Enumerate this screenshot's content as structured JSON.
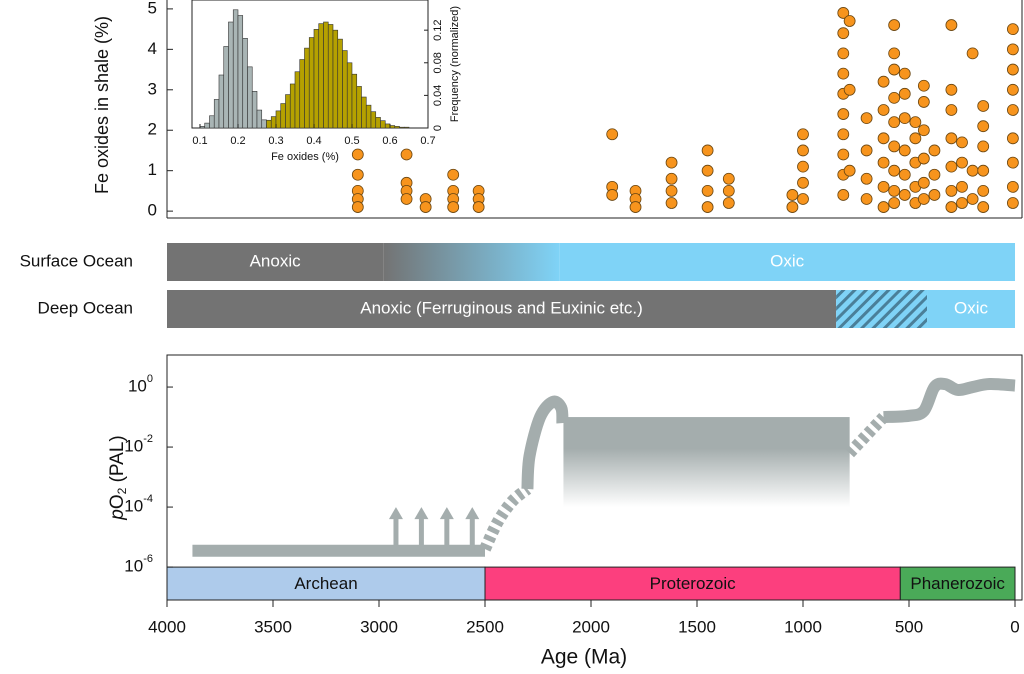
{
  "chart_data": [
    {
      "type": "scatter",
      "ylabel": "Fe oxides in shale (%)",
      "xlim": [
        4000,
        -33
      ],
      "ylim": [
        -0.17,
        5.22
      ],
      "yticks": [
        0,
        1,
        2,
        3,
        4,
        5
      ],
      "color": "#f7941d",
      "edge_color": "#6b4712",
      "x": [
        3100,
        3100,
        3100,
        3100,
        3100,
        2870,
        2870,
        2870,
        2870,
        2780,
        2780,
        2650,
        2650,
        2650,
        2650,
        2530,
        2530,
        2530,
        1900,
        1900,
        1900,
        1790,
        1790,
        1790,
        1620,
        1620,
        1620,
        1620,
        1450,
        1450,
        1450,
        1450,
        1350,
        1350,
        1350,
        1050,
        1050,
        1000,
        1000,
        1000,
        1000,
        1000,
        810,
        810,
        810,
        810,
        810,
        810,
        810,
        810,
        810,
        810,
        780,
        780,
        780,
        700,
        700,
        700,
        700,
        620,
        620,
        620,
        620,
        620,
        620,
        570,
        570,
        570,
        570,
        570,
        570,
        570,
        570,
        570,
        520,
        520,
        520,
        520,
        520,
        520,
        470,
        470,
        470,
        470,
        470,
        430,
        430,
        430,
        430,
        430,
        430,
        380,
        380,
        380,
        300,
        300,
        300,
        300,
        300,
        300,
        300,
        250,
        250,
        250,
        250,
        200,
        200,
        200,
        150,
        150,
        150,
        150,
        150,
        150,
        10,
        10,
        10,
        10,
        10,
        10,
        10,
        10,
        10
      ],
      "values": [
        1.4,
        0.9,
        0.5,
        0.3,
        0.1,
        1.4,
        0.7,
        0.5,
        0.3,
        0.3,
        0.1,
        0.9,
        0.5,
        0.3,
        0.1,
        0.5,
        0.3,
        0.1,
        1.9,
        0.6,
        0.4,
        0.5,
        0.3,
        0.1,
        1.2,
        0.8,
        0.5,
        0.2,
        1.5,
        1.0,
        0.5,
        0.1,
        0.8,
        0.5,
        0.2,
        0.4,
        0.1,
        1.9,
        1.5,
        1.1,
        0.7,
        0.3,
        4.9,
        4.4,
        3.9,
        3.4,
        2.9,
        2.4,
        1.9,
        1.4,
        0.9,
        0.4,
        4.7,
        3.0,
        1.0,
        2.3,
        1.5,
        0.8,
        0.3,
        3.2,
        2.5,
        1.8,
        1.2,
        0.6,
        0.1,
        4.6,
        3.9,
        3.5,
        2.8,
        2.2,
        1.6,
        1.0,
        0.5,
        0.2,
        3.4,
        2.9,
        2.3,
        1.5,
        0.9,
        0.4,
        2.2,
        1.8,
        1.2,
        0.6,
        0.2,
        3.1,
        2.7,
        2.0,
        1.3,
        0.7,
        0.3,
        1.5,
        0.9,
        0.4,
        4.6,
        3.0,
        2.5,
        1.8,
        1.1,
        0.5,
        0.1,
        1.7,
        1.2,
        0.6,
        0.2,
        3.9,
        1.0,
        0.3,
        2.6,
        2.1,
        1.6,
        1.0,
        0.5,
        0.1,
        4.5,
        4.0,
        3.5,
        3.0,
        2.5,
        1.8,
        1.2,
        0.6,
        0.2
      ]
    },
    {
      "type": "histogram",
      "xlabel": "Fe oxides (%)",
      "ylabel": "Frequency (normalized)",
      "xlim": [
        0.079,
        0.7
      ],
      "ylim": [
        0,
        0.157
      ],
      "xticks": [
        0.1,
        0.2,
        0.3,
        0.4,
        0.5,
        0.6,
        0.7
      ],
      "yticks": [
        0,
        0.04,
        0.08,
        0.12
      ],
      "edge_color": "#333333",
      "series": [
        {
          "color": "#a9b5b5",
          "bins": [
            0.1,
            0.1125,
            0.125,
            0.1375,
            0.15,
            0.1625,
            0.175,
            0.1875,
            0.2,
            0.2125,
            0.225,
            0.2375,
            0.25,
            0.2625,
            0.275,
            0.2875,
            0.3
          ],
          "values": [
            0.002,
            0.006,
            0.015,
            0.035,
            0.065,
            0.1,
            0.13,
            0.145,
            0.138,
            0.11,
            0.075,
            0.045,
            0.022,
            0.01,
            0.004,
            0.001
          ]
        },
        {
          "color": "#b5a100",
          "bins": [
            0.275,
            0.2875,
            0.3,
            0.3125,
            0.325,
            0.3375,
            0.35,
            0.3625,
            0.375,
            0.3875,
            0.4,
            0.4125,
            0.425,
            0.4375,
            0.45,
            0.4625,
            0.475,
            0.4875,
            0.5,
            0.5125,
            0.525,
            0.5375,
            0.55,
            0.5625,
            0.575,
            0.5875,
            0.6,
            0.6125,
            0.625,
            0.6375,
            0.65
          ],
          "values": [
            0.0095,
            0.014,
            0.021,
            0.03,
            0.041,
            0.054,
            0.069,
            0.084,
            0.098,
            0.111,
            0.121,
            0.128,
            0.13,
            0.127,
            0.12,
            0.109,
            0.095,
            0.08,
            0.066,
            0.051,
            0.038,
            0.028,
            0.02,
            0.013,
            0.009,
            0.005,
            0.003,
            0.002,
            0.001,
            0.001
          ]
        }
      ]
    },
    {
      "type": "bands",
      "xlim": [
        4000,
        -33
      ],
      "rows": [
        {
          "name": "Surface Ocean",
          "segments": [
            {
              "label": "Anoxic",
              "start": 4000,
              "end": 2980,
              "color": "#737373"
            },
            {
              "start": 2980,
              "end": 2150,
              "style": "gradient"
            },
            {
              "label": "Oxic",
              "start": 2150,
              "end": 0,
              "color": "#7fd3f7"
            }
          ]
        },
        {
          "name": "Deep Ocean",
          "segments": [
            {
              "label": "Anoxic (Ferruginous and Euxinic etc.)",
              "start": 4000,
              "end": 844,
              "color": "#737373"
            },
            {
              "start": 844,
              "end": 415,
              "style": "hatched",
              "color": "#7fd3f7",
              "hatch_color": "#4a7f99"
            },
            {
              "label": "Oxic",
              "start": 415,
              "end": 0,
              "color": "#7fd3f7"
            }
          ]
        }
      ]
    },
    {
      "type": "line",
      "ylabel": [
        "p",
        "O",
        "2",
        " (PAL)"
      ],
      "xlabel": "Age (Ma)",
      "log_y": true,
      "xlim": [
        4000,
        -33
      ],
      "ylim": [
        8e-08,
        11.7
      ],
      "xticks": [
        4000,
        3500,
        3000,
        2500,
        2000,
        1500,
        1000,
        500,
        0
      ],
      "yticks": [
        {
          "value": 1e-06,
          "label": "10",
          "exponent": "-6"
        },
        {
          "value": 0.0001,
          "label": "10",
          "exponent": "-4"
        },
        {
          "value": 0.01,
          "label": "10",
          "exponent": "-2"
        },
        {
          "value": 1,
          "label": "10",
          "exponent": "0"
        }
      ],
      "color": "#a4adad",
      "curves": [
        {
          "style": "solid",
          "x": [
            3880,
            2500
          ],
          "values": [
            3.5e-06,
            3.5e-06
          ]
        },
        {
          "style": "dashed",
          "x": [
            2500,
            2440,
            2370,
            2300
          ],
          "values": [
            4e-06,
            3.2e-05,
            0.00016,
            0.0004
          ]
        },
        {
          "style": "solid",
          "x": [
            2300,
            2290,
            2240,
            2180,
            2140,
            2135
          ],
          "values": [
            0.0004,
            0.005,
            0.1,
            0.32,
            0.2,
            0.063
          ]
        },
        {
          "style": "dashed",
          "x": [
            780,
            700,
            620
          ],
          "values": [
            0.0063,
            0.025,
            0.1
          ]
        },
        {
          "style": "solid",
          "x": [
            620,
            500,
            430,
            380,
            330,
            270,
            200,
            120,
            0
          ],
          "values": [
            0.1,
            0.11,
            0.16,
            1.0,
            1.26,
            0.8,
            1.0,
            1.26,
            1.12
          ]
        }
      ],
      "arrows": {
        "x": [
          2920,
          2800,
          2680,
          2560
        ],
        "from": 3.5e-06,
        "to": 0.0001
      },
      "box": {
        "x": [
          2130,
          780
        ],
        "values": [
          0.0001,
          0.1
        ]
      },
      "eons": [
        {
          "label": "Archean",
          "start": 4000,
          "end": 2500,
          "color": "#aecbeb"
        },
        {
          "label": "Proterozoic",
          "start": 2500,
          "end": 541,
          "color": "#fc3f7e"
        },
        {
          "label": "Phanerozoic",
          "start": 541,
          "end": 0,
          "color": "#4aaa58"
        }
      ]
    }
  ]
}
